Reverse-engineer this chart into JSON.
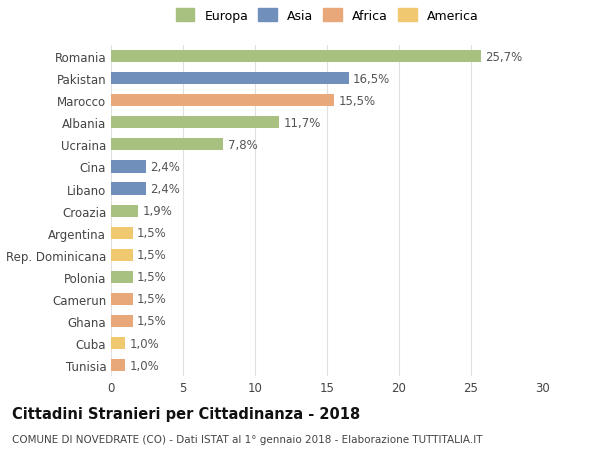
{
  "categories": [
    "Romania",
    "Pakistan",
    "Marocco",
    "Albania",
    "Ucraina",
    "Cina",
    "Libano",
    "Croazia",
    "Argentina",
    "Rep. Dominicana",
    "Polonia",
    "Camerun",
    "Ghana",
    "Cuba",
    "Tunisia"
  ],
  "values": [
    25.7,
    16.5,
    15.5,
    11.7,
    7.8,
    2.4,
    2.4,
    1.9,
    1.5,
    1.5,
    1.5,
    1.5,
    1.5,
    1.0,
    1.0
  ],
  "continents": [
    "Europa",
    "Asia",
    "Africa",
    "Europa",
    "Europa",
    "Asia",
    "Asia",
    "Europa",
    "America",
    "America",
    "Europa",
    "Africa",
    "Africa",
    "America",
    "Africa"
  ],
  "labels": [
    "25,7%",
    "16,5%",
    "15,5%",
    "11,7%",
    "7,8%",
    "2,4%",
    "2,4%",
    "1,9%",
    "1,5%",
    "1,5%",
    "1,5%",
    "1,5%",
    "1,5%",
    "1,0%",
    "1,0%"
  ],
  "continent_colors": {
    "Europa": "#a8c080",
    "Asia": "#7090bb",
    "Africa": "#e8a87a",
    "America": "#f0c870"
  },
  "legend_order": [
    "Europa",
    "Asia",
    "Africa",
    "America"
  ],
  "xlim": [
    0,
    30
  ],
  "xticks": [
    0,
    5,
    10,
    15,
    20,
    25,
    30
  ],
  "title": "Cittadini Stranieri per Cittadinanza - 2018",
  "subtitle": "COMUNE DI NOVEDRATE (CO) - Dati ISTAT al 1° gennaio 2018 - Elaborazione TUTTITALIA.IT",
  "background_color": "#ffffff",
  "grid_color": "#e0e0e0",
  "bar_height": 0.55,
  "label_fontsize": 8.5,
  "tick_fontsize": 8.5,
  "title_fontsize": 10.5,
  "subtitle_fontsize": 7.5
}
